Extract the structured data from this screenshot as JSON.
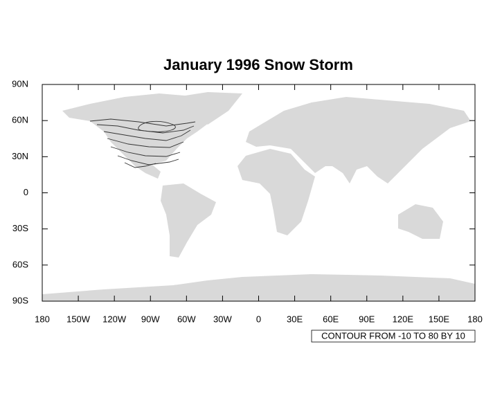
{
  "title": "January 1996 Snow Storm",
  "map": {
    "xlim": [
      -180,
      180
    ],
    "ylim": [
      -90,
      90
    ],
    "xticks": [
      {
        "value": -180,
        "label": "180"
      },
      {
        "value": -150,
        "label": "150W"
      },
      {
        "value": -120,
        "label": "120W"
      },
      {
        "value": -90,
        "label": "90W"
      },
      {
        "value": -60,
        "label": "60W"
      },
      {
        "value": -30,
        "label": "30W"
      },
      0,
      {
        "value": 30,
        "label": "30E"
      },
      {
        "value": 60,
        "label": "60E"
      },
      {
        "value": 90,
        "label": "90E"
      },
      {
        "value": 120,
        "label": "120E"
      },
      {
        "value": 150,
        "label": "150E"
      },
      180
    ],
    "yticks": [
      {
        "value": -90,
        "label": "90S"
      },
      {
        "value": -60,
        "label": "60S"
      },
      {
        "value": -30,
        "label": "30S"
      },
      0,
      {
        "value": 30,
        "label": "30N"
      },
      {
        "value": 60,
        "label": "60N"
      },
      {
        "value": 90,
        "label": "90N"
      }
    ]
  },
  "contour_label": "CONTOUR FROM -10 TO 80 BY 10"
}
